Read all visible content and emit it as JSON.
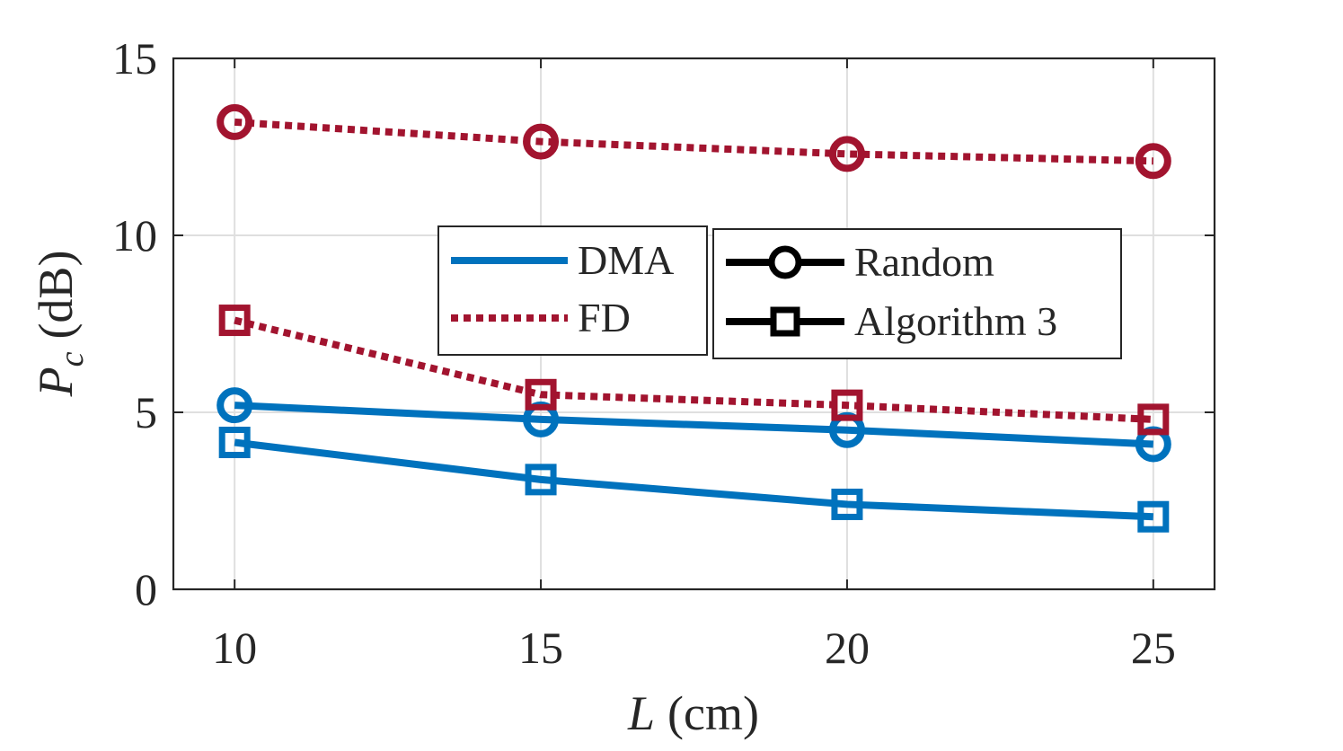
{
  "chart_data": {
    "type": "line",
    "x": [
      10,
      15,
      20,
      25
    ],
    "series": [
      {
        "name": "DMA - Random",
        "method": "DMA",
        "scheme": "Random",
        "marker": "circle",
        "line": "solid",
        "color": "#0072BD",
        "values": [
          5.2,
          4.8,
          4.5,
          4.1
        ]
      },
      {
        "name": "DMA - Algorithm 3",
        "method": "DMA",
        "scheme": "Algorithm 3",
        "marker": "square",
        "line": "solid",
        "color": "#0072BD",
        "values": [
          4.15,
          3.1,
          2.4,
          2.05
        ]
      },
      {
        "name": "FD - Random",
        "method": "FD",
        "scheme": "Random",
        "marker": "circle",
        "line": "dotted",
        "color": "#A2142F",
        "values": [
          13.2,
          12.65,
          12.3,
          12.1
        ]
      },
      {
        "name": "FD - Algorithm 3",
        "method": "FD",
        "scheme": "Algorithm 3",
        "marker": "square",
        "line": "dotted",
        "color": "#A2142F",
        "values": [
          7.6,
          5.5,
          5.2,
          4.8
        ]
      }
    ],
    "title": "",
    "xlabel_var": "L",
    "xlabel_unit": "(cm)",
    "ylabel_var": "P",
    "ylabel_sub": "c",
    "ylabel_unit": "(dB)",
    "xlim": [
      9,
      26
    ],
    "ylim": [
      0,
      15
    ],
    "xticks": [
      "10",
      "15",
      "20",
      "25"
    ],
    "yticks": [
      "0",
      "5",
      "10",
      "15"
    ],
    "grid": true,
    "legend_method": [
      {
        "label": "DMA",
        "color": "#0072BD",
        "line": "solid"
      },
      {
        "label": "FD",
        "color": "#A2142F",
        "line": "dotted"
      }
    ],
    "legend_marker": [
      {
        "label": "Random",
        "marker": "circle"
      },
      {
        "label": "Algorithm 3",
        "marker": "square"
      }
    ],
    "legend_placement": "center"
  }
}
